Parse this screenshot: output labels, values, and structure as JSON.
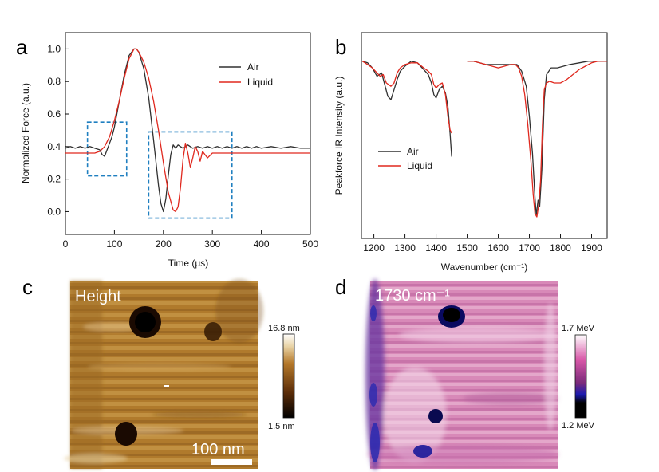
{
  "chart_data": [
    {
      "panel": "a",
      "type": "line",
      "xlabel": "Time (μs)",
      "ylabel": "Normalized Force (a.u.)",
      "xlim": [
        0,
        500
      ],
      "ylim": [
        -0.14,
        1.1
      ],
      "xticks": [
        0,
        100,
        200,
        300,
        400,
        500
      ],
      "yticks": [
        0.0,
        0.2,
        0.4,
        0.6,
        0.8,
        1.0
      ],
      "ytick_labels": [
        "0.0",
        "0.2",
        "0.4",
        "0.6",
        "0.8",
        "1.0"
      ],
      "legend": "top-right",
      "series": [
        {
          "name": "Air",
          "color": "#303030",
          "x": [
            0,
            10,
            20,
            30,
            40,
            50,
            60,
            70,
            75,
            80,
            85,
            90,
            95,
            100,
            105,
            110,
            120,
            130,
            140,
            145,
            150,
            160,
            170,
            180,
            190,
            195,
            200,
            205,
            210,
            215,
            220,
            225,
            230,
            240,
            250,
            260,
            270,
            280,
            290,
            300,
            310,
            320,
            330,
            340,
            350,
            360,
            370,
            380,
            390,
            400,
            420,
            440,
            460,
            480,
            500
          ],
          "y": [
            0.39,
            0.4,
            0.39,
            0.4,
            0.39,
            0.4,
            0.39,
            0.38,
            0.35,
            0.34,
            0.38,
            0.42,
            0.46,
            0.52,
            0.6,
            0.68,
            0.84,
            0.96,
            1.0,
            1.0,
            0.98,
            0.88,
            0.7,
            0.44,
            0.16,
            0.05,
            0.0,
            0.08,
            0.22,
            0.35,
            0.41,
            0.39,
            0.41,
            0.39,
            0.41,
            0.39,
            0.4,
            0.39,
            0.4,
            0.39,
            0.4,
            0.39,
            0.4,
            0.39,
            0.4,
            0.39,
            0.4,
            0.39,
            0.4,
            0.39,
            0.4,
            0.39,
            0.4,
            0.39,
            0.39
          ]
        },
        {
          "name": "Liquid",
          "color": "#e0281e",
          "x": [
            0,
            20,
            40,
            60,
            70,
            80,
            90,
            100,
            110,
            120,
            130,
            140,
            145,
            150,
            160,
            170,
            180,
            190,
            200,
            210,
            220,
            225,
            230,
            235,
            240,
            245,
            250,
            255,
            260,
            265,
            270,
            275,
            280,
            290,
            300,
            320,
            340,
            360,
            380,
            400,
            420,
            440,
            460,
            480,
            500
          ],
          "y": [
            0.36,
            0.36,
            0.36,
            0.36,
            0.37,
            0.4,
            0.46,
            0.56,
            0.68,
            0.82,
            0.94,
            1.0,
            1.0,
            0.98,
            0.92,
            0.82,
            0.68,
            0.5,
            0.3,
            0.12,
            0.01,
            0.0,
            0.03,
            0.15,
            0.32,
            0.42,
            0.36,
            0.27,
            0.33,
            0.4,
            0.37,
            0.31,
            0.37,
            0.33,
            0.36,
            0.36,
            0.36,
            0.36,
            0.36,
            0.36,
            0.36,
            0.36,
            0.36,
            0.36,
            0.36
          ]
        }
      ],
      "annotations": [
        {
          "type": "dashed-box",
          "x": [
            45,
            125
          ],
          "y": [
            0.22,
            0.55
          ]
        },
        {
          "type": "dashed-box",
          "x": [
            170,
            340
          ],
          "y": [
            -0.04,
            0.49
          ]
        }
      ]
    },
    {
      "panel": "b",
      "type": "line",
      "xlabel": "Wavenumber (cm⁻¹)",
      "ylabel": "Peakforce IR Intensity (a.u.)",
      "xlim": [
        1160,
        1950
      ],
      "xticks": [
        1200,
        1300,
        1400,
        1500,
        1600,
        1700,
        1800,
        1900
      ],
      "yticks": [],
      "ylim": [
        0,
        1
      ],
      "legend": "left",
      "series": [
        {
          "name": "Air",
          "color": "#303030",
          "segments": [
            {
              "x": [
                1163,
                1180,
                1195,
                1210,
                1225,
                1235,
                1245,
                1255,
                1265,
                1275,
                1285,
                1300,
                1320,
                1340,
                1360,
                1375,
                1385,
                1393,
                1400,
                1410,
                1420,
                1430,
                1438,
                1445,
                1450
              ],
              "y": [
                0.93,
                0.92,
                0.89,
                0.84,
                0.86,
                0.79,
                0.72,
                0.7,
                0.76,
                0.82,
                0.87,
                0.9,
                0.93,
                0.92,
                0.88,
                0.85,
                0.8,
                0.73,
                0.71,
                0.76,
                0.78,
                0.74,
                0.66,
                0.5,
                0.36
              ]
            },
            {
              "x": [
                1500,
                1520,
                1540,
                1560,
                1580,
                1600,
                1620,
                1640,
                1660,
                1675,
                1690,
                1700,
                1710,
                1718,
                1722,
                1728,
                1733,
                1740,
                1748,
                1755,
                1770,
                1790,
                1810,
                1830,
                1860,
                1890,
                1920,
                1950
              ],
              "y": [
                0.93,
                0.93,
                0.92,
                0.91,
                0.91,
                0.91,
                0.91,
                0.91,
                0.91,
                0.87,
                0.78,
                0.6,
                0.38,
                0.12,
                0.01,
                0.1,
                0.06,
                0.28,
                0.7,
                0.85,
                0.89,
                0.89,
                0.9,
                0.91,
                0.92,
                0.93,
                0.93,
                0.93
              ]
            }
          ]
        },
        {
          "name": "Liquid",
          "color": "#e0281e",
          "segments": [
            {
              "x": [
                1163,
                1180,
                1195,
                1210,
                1220,
                1230,
                1240,
                1255,
                1265,
                1275,
                1285,
                1300,
                1320,
                1340,
                1360,
                1375,
                1385,
                1393,
                1400,
                1410,
                1420,
                1430,
                1438,
                1445,
                1450
              ],
              "y": [
                0.93,
                0.91,
                0.89,
                0.86,
                0.84,
                0.85,
                0.8,
                0.78,
                0.8,
                0.86,
                0.89,
                0.91,
                0.92,
                0.92,
                0.89,
                0.87,
                0.85,
                0.79,
                0.77,
                0.79,
                0.8,
                0.73,
                0.6,
                0.52,
                0.5
              ]
            },
            {
              "x": [
                1500,
                1520,
                1540,
                1560,
                1580,
                1600,
                1620,
                1640,
                1655,
                1665,
                1675,
                1685,
                1695,
                1705,
                1712,
                1718,
                1724,
                1730,
                1736,
                1742,
                1748,
                1755,
                1765,
                1780,
                1800,
                1820,
                1840,
                1860,
                1880,
                1900,
                1920,
                1950
              ],
              "y": [
                0.93,
                0.93,
                0.92,
                0.91,
                0.9,
                0.89,
                0.9,
                0.91,
                0.91,
                0.89,
                0.84,
                0.73,
                0.55,
                0.33,
                0.14,
                0.02,
                0.0,
                0.07,
                0.22,
                0.55,
                0.76,
                0.8,
                0.81,
                0.8,
                0.8,
                0.82,
                0.85,
                0.88,
                0.9,
                0.92,
                0.93,
                0.93
              ]
            }
          ]
        }
      ]
    },
    {
      "panel": "c",
      "type": "heatmap",
      "title": "Height",
      "colorbar": {
        "max_label": "16.8 nm",
        "min_label": "1.5 nm",
        "colors": [
          "#000000",
          "#5a2c08",
          "#b4782a",
          "#e8d2a4",
          "#ffffff"
        ]
      },
      "scale_bar": "100 nm"
    },
    {
      "panel": "d",
      "type": "heatmap",
      "title": "1730 cm⁻¹",
      "colorbar": {
        "max_label": "1.7 MeV",
        "min_label": "1.2 MeV",
        "colors": [
          "#000000",
          "#1a1aa0",
          "#7a2a7a",
          "#d858a8",
          "#ffffff"
        ]
      }
    }
  ],
  "panel_labels": {
    "a": "a",
    "b": "b",
    "c": "c",
    "d": "d"
  },
  "colors": {
    "air": "#303030",
    "liquid": "#e0281e",
    "box": "#1f7fc0"
  }
}
